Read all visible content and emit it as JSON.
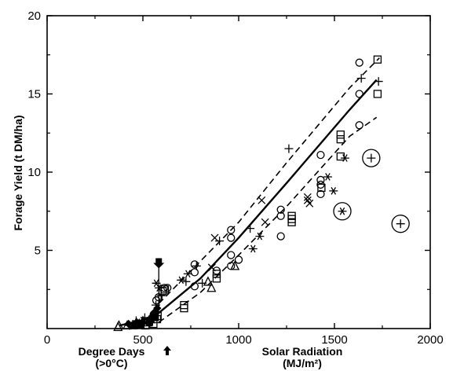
{
  "chart_data": {
    "type": "scatter",
    "ylabel": "Forage Yield (t DM/ha)",
    "xlabel_left": "Degree Days",
    "xlabel_left_unit": "(>0°C)",
    "xlabel_right": "Solar Radiation",
    "xlabel_right_unit": "(MJ/m²)",
    "xlim": [
      0,
      2000
    ],
    "ylim": [
      0,
      20
    ],
    "x_ticks": [
      "0",
      "500",
      "1000",
      "1500",
      "2000"
    ],
    "x_tick_values": [
      0,
      500,
      1000,
      1500,
      2000
    ],
    "y_ticks": [
      "5",
      "10",
      "15",
      "20"
    ],
    "y_tick_values": [
      5,
      10,
      15,
      20
    ],
    "origin_marker_x": 583,
    "origin_marker_y": 4.5,
    "fit_line": [
      [
        380,
        0.2
      ],
      [
        520,
        0.6
      ],
      [
        583,
        1.0
      ],
      [
        800,
        3.2
      ],
      [
        1000,
        5.8
      ],
      [
        1250,
        9.3
      ],
      [
        1580,
        14.0
      ],
      [
        1720,
        15.9
      ]
    ],
    "band_upper": [
      [
        583,
        1.6
      ],
      [
        800,
        4.3
      ],
      [
        1000,
        6.8
      ],
      [
        1250,
        10.6
      ],
      [
        1580,
        15.4
      ],
      [
        1735,
        17.3
      ]
    ],
    "band_lower": [
      [
        583,
        0.4
      ],
      [
        800,
        2.3
      ],
      [
        1000,
        4.7
      ],
      [
        1250,
        7.8
      ],
      [
        1580,
        12.3
      ],
      [
        1720,
        13.5
      ]
    ],
    "series": [
      {
        "marker": "circle",
        "points": [
          [
            460,
            0.2
          ],
          [
            530,
            0.5
          ],
          [
            556,
            0.9
          ],
          [
            570,
            1.8
          ],
          [
            582,
            2.0
          ],
          [
            612,
            2.6
          ],
          [
            628,
            2.6
          ],
          [
            770,
            4.1
          ],
          [
            770,
            3.6
          ],
          [
            770,
            2.7
          ],
          [
            885,
            3.7
          ],
          [
            960,
            4.0
          ],
          [
            960,
            4.7
          ],
          [
            960,
            5.8
          ],
          [
            960,
            6.3
          ],
          [
            1000,
            4.4
          ],
          [
            1220,
            5.9
          ],
          [
            1220,
            7.2
          ],
          [
            1220,
            7.6
          ],
          [
            1428,
            8.6
          ],
          [
            1428,
            9.2
          ],
          [
            1428,
            9.5
          ],
          [
            1428,
            11.1
          ],
          [
            1630,
            17.0
          ],
          [
            1630,
            15.0
          ],
          [
            1630,
            13.0
          ]
        ]
      },
      {
        "marker": "square",
        "points": [
          [
            513,
            0.2
          ],
          [
            555,
            0.3
          ],
          [
            574,
            0.6
          ],
          [
            577,
            0.8
          ],
          [
            603,
            2.4
          ],
          [
            615,
            2.5
          ],
          [
            715,
            1.3
          ],
          [
            715,
            1.5
          ],
          [
            885,
            3.2
          ],
          [
            885,
            3.5
          ],
          [
            1277,
            6.8
          ],
          [
            1277,
            7.2
          ],
          [
            1277,
            7.0
          ],
          [
            1432,
            9.0
          ],
          [
            1532,
            12.4
          ],
          [
            1532,
            12.1
          ],
          [
            1532,
            11.0
          ],
          [
            1725,
            17.2
          ],
          [
            1725,
            15.0
          ]
        ]
      },
      {
        "marker": "triangle",
        "points": [
          [
            370,
            0.1
          ],
          [
            375,
            0.2
          ],
          [
            418,
            0.2
          ],
          [
            526,
            0.4
          ],
          [
            540,
            0.6
          ],
          [
            840,
            3.0
          ],
          [
            858,
            2.6
          ],
          [
            980,
            4.0
          ]
        ]
      },
      {
        "marker": "plus",
        "points": [
          [
            430,
            0.2
          ],
          [
            465,
            0.5
          ],
          [
            510,
            0.7
          ],
          [
            568,
            1.5
          ],
          [
            595,
            2.1
          ],
          [
            725,
            3.0
          ],
          [
            780,
            4.0
          ],
          [
            810,
            2.9
          ],
          [
            900,
            5.6
          ],
          [
            1060,
            6.4
          ],
          [
            1262,
            11.5
          ],
          [
            1640,
            16.0
          ],
          [
            1730,
            15.8
          ]
        ]
      },
      {
        "marker": "asterisk",
        "points": [
          [
            472,
            0.4
          ],
          [
            540,
            0.6
          ],
          [
            570,
            2.9
          ],
          [
            584,
            2.6
          ],
          [
            700,
            3.1
          ],
          [
            735,
            3.5
          ],
          [
            1075,
            5.1
          ],
          [
            1110,
            5.9
          ],
          [
            1465,
            9.7
          ],
          [
            1495,
            8.8
          ],
          [
            1555,
            10.9
          ]
        ]
      },
      {
        "marker": "cross",
        "points": [
          [
            860,
            3.9
          ],
          [
            875,
            5.8
          ],
          [
            1120,
            8.2
          ],
          [
            1138,
            6.8
          ],
          [
            1360,
            8.4
          ],
          [
            1360,
            8.2
          ],
          [
            1370,
            8.0
          ]
        ]
      },
      {
        "marker": "diamond",
        "points": [
          [
            425,
            0.3
          ],
          [
            468,
            0.4
          ],
          [
            555,
            0.8
          ],
          [
            565,
            1.1
          ],
          [
            575,
            1.3
          ]
        ]
      },
      {
        "marker": "triangle-filled",
        "points": [
          [
            450,
            0.2
          ],
          [
            480,
            0.3
          ],
          [
            500,
            0.5
          ],
          [
            545,
            0.8
          ],
          [
            560,
            1.0
          ]
        ]
      },
      {
        "marker": "square-filled",
        "points": [
          [
            490,
            0.2
          ],
          [
            535,
            0.4
          ],
          [
            565,
            0.7
          ]
        ]
      }
    ],
    "outliers": [
      {
        "x": 1692,
        "y": 10.9,
        "marker": "plus"
      },
      {
        "x": 1541,
        "y": 7.5,
        "marker": "asterisk"
      },
      {
        "x": 1845,
        "y": 6.7,
        "marker": "plus"
      }
    ]
  }
}
